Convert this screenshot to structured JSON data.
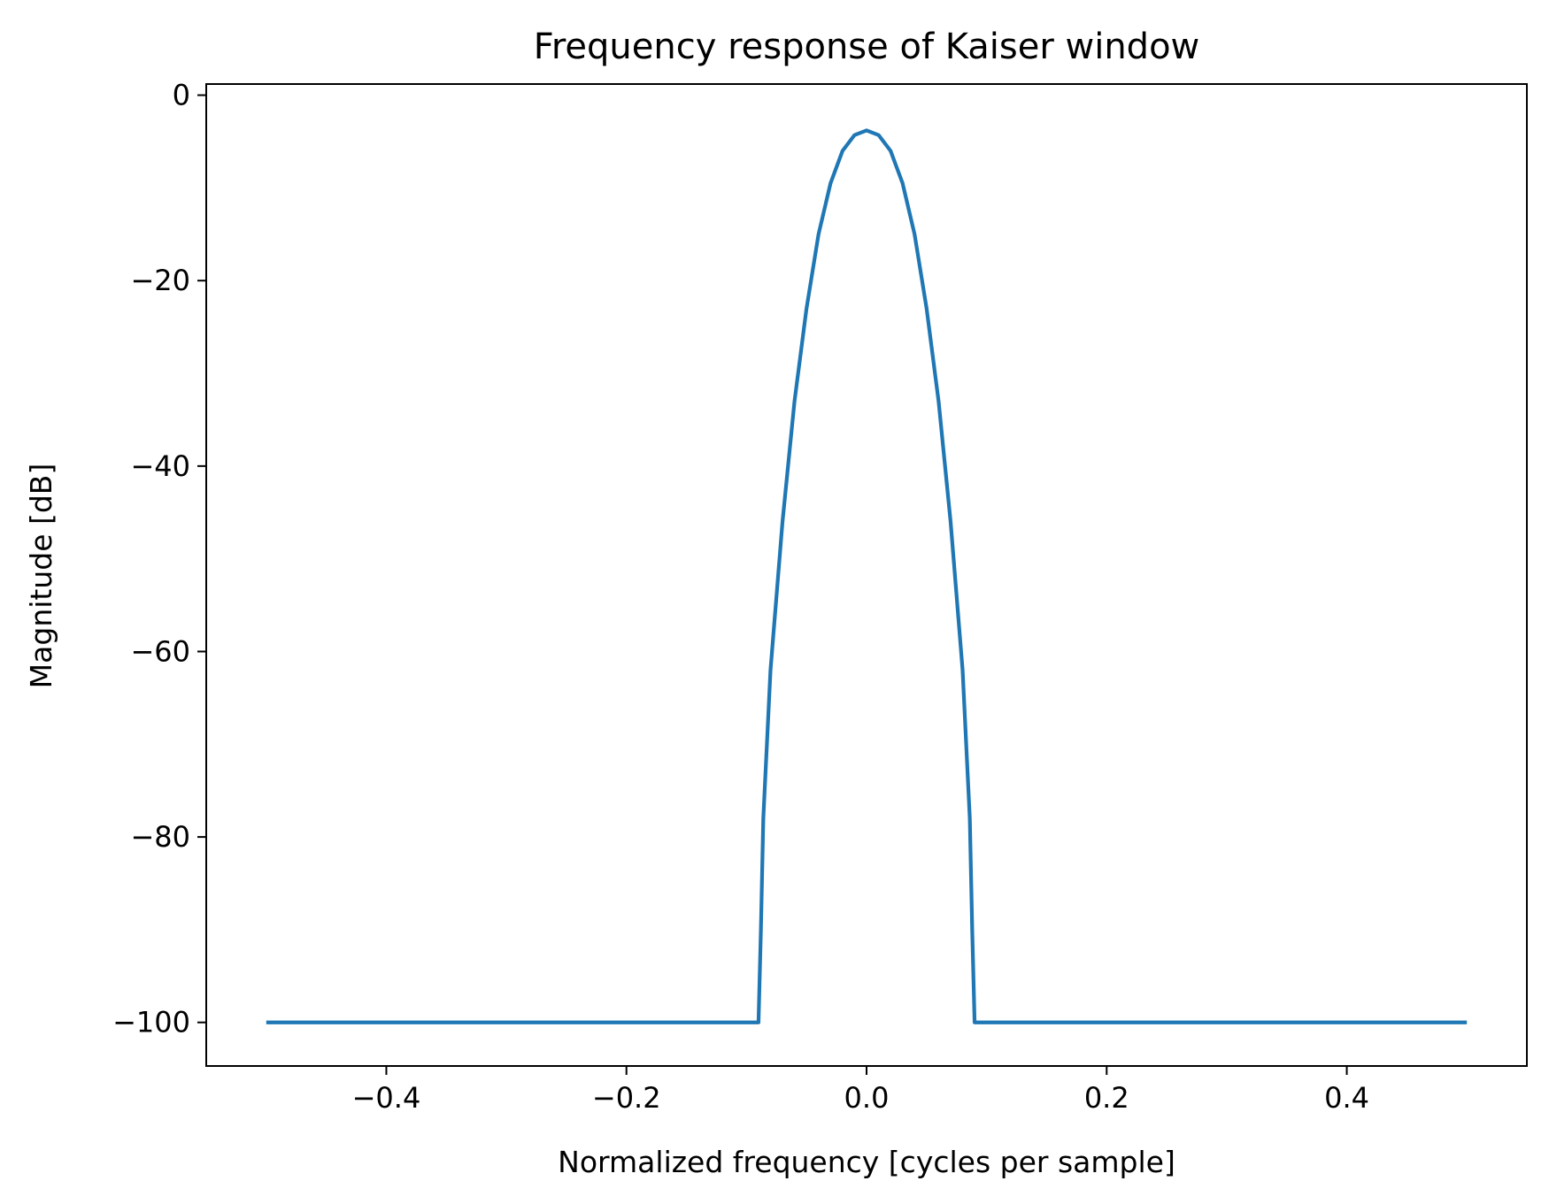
{
  "chart_data": {
    "type": "line",
    "title": "Frequency response of Kaiser window",
    "xlabel": "Normalized frequency [cycles per sample]",
    "ylabel": "Magnitude [dB]",
    "xlim": [
      -0.55,
      0.55
    ],
    "ylim": [
      -104.7,
      1.2
    ],
    "xticks": [
      -0.4,
      -0.2,
      0.0,
      0.2,
      0.4
    ],
    "xtick_labels": [
      "−0.4",
      "−0.2",
      "0.0",
      "0.2",
      "0.4"
    ],
    "yticks": [
      0,
      -20,
      -40,
      -60,
      -80,
      -100
    ],
    "ytick_labels": [
      "0",
      "−20",
      "−40",
      "−60",
      "−80",
      "−100"
    ],
    "grid": false,
    "legend": false,
    "series": [
      {
        "color": "#1f77b4",
        "x": [
          -0.5,
          -0.09,
          -0.088,
          -0.086,
          -0.08,
          -0.07,
          -0.06,
          -0.05,
          -0.04,
          -0.03,
          -0.02,
          -0.01,
          0.0,
          0.01,
          0.02,
          0.03,
          0.04,
          0.05,
          0.06,
          0.07,
          0.08,
          0.086,
          0.088,
          0.09,
          0.5
        ],
        "y": [
          -100,
          -100,
          -90,
          -78,
          -62,
          -46,
          -33,
          -23,
          -15,
          -9.5,
          -6,
          -4.3,
          -3.8,
          -4.3,
          -6,
          -9.5,
          -15,
          -23,
          -33,
          -46,
          -62,
          -78,
          -90,
          -100,
          -100
        ]
      }
    ]
  }
}
